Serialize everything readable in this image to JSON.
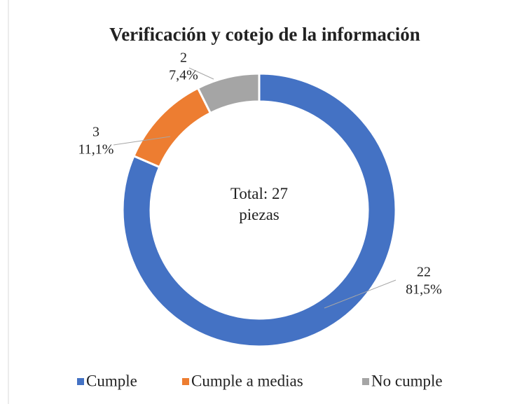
{
  "chart_data": {
    "type": "donut",
    "title": "Verificación y cotejo de la información",
    "categories": [
      "Cumple",
      "Cumple a medias",
      "No cumple"
    ],
    "values": [
      22,
      3,
      2
    ],
    "percentages": [
      81.5,
      11.1,
      7.4
    ],
    "percentage_labels": [
      "81,5%",
      "11,1%",
      "7,4%"
    ],
    "colors": [
      "#4472c4",
      "#ed7d31",
      "#a5a5a5"
    ],
    "annotation": "Total: 27 piezas",
    "legend": "bottom"
  }
}
